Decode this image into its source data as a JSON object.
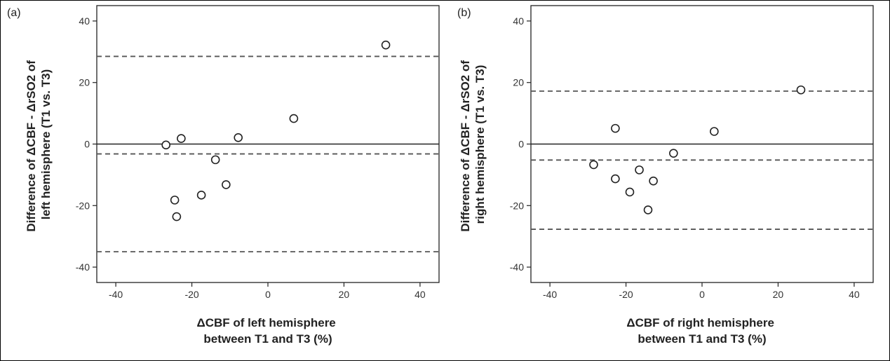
{
  "figure": {
    "border_color": "#000000"
  },
  "chart_data": [
    {
      "panel": "(a)",
      "type": "scatter",
      "title": "",
      "xlabel": [
        "ΔCBF of left hemisphere",
        "between T1 and T3 (%)"
      ],
      "ylabel": [
        "Difference of ΔCBF - ΔrSO2 of",
        "left hemisphere (T1 vs. T3)"
      ],
      "xlim": [
        -45,
        45
      ],
      "ylim": [
        -45,
        45
      ],
      "xticks": [
        -40,
        -20,
        0,
        20,
        40
      ],
      "yticks": [
        -40,
        -20,
        0,
        20,
        40
      ],
      "xtick_labels": [
        "-40",
        "-20",
        "0",
        "20",
        "40"
      ],
      "ytick_labels": [
        "-40",
        "-20",
        "0",
        "20",
        "40"
      ],
      "grid": false,
      "reference_line": 0,
      "dashed_lines": [
        28.5,
        -3.2,
        -35.0
      ],
      "points": [
        {
          "x": -26.8,
          "y": -0.3
        },
        {
          "x": -22.8,
          "y": 1.8
        },
        {
          "x": -24.5,
          "y": -18.2
        },
        {
          "x": -24.0,
          "y": -23.6
        },
        {
          "x": -17.5,
          "y": -16.6
        },
        {
          "x": -13.8,
          "y": -5.1
        },
        {
          "x": -11.0,
          "y": -13.2
        },
        {
          "x": -7.8,
          "y": 2.1
        },
        {
          "x": 6.8,
          "y": 8.3
        },
        {
          "x": 31.0,
          "y": 32.2
        }
      ]
    },
    {
      "panel": "(b)",
      "type": "scatter",
      "title": "",
      "xlabel": [
        "ΔCBF of right hemisphere",
        "between T1 and T3 (%)"
      ],
      "ylabel": [
        "Difference of ΔCBF - ΔrSO2 of",
        "right hemisphere (T1 vs. T3)"
      ],
      "xlim": [
        -45,
        45
      ],
      "ylim": [
        -45,
        45
      ],
      "xticks": [
        -40,
        -20,
        0,
        20,
        40
      ],
      "yticks": [
        -40,
        -20,
        0,
        20,
        40
      ],
      "xtick_labels": [
        "-40",
        "-20",
        "0",
        "20",
        "40"
      ],
      "ytick_labels": [
        "-40",
        "-20",
        "0",
        "20",
        "40"
      ],
      "grid": false,
      "reference_line": 0,
      "dashed_lines": [
        17.2,
        -5.2,
        -27.7
      ],
      "points": [
        {
          "x": -28.5,
          "y": -6.7
        },
        {
          "x": -22.8,
          "y": 5.1
        },
        {
          "x": -22.8,
          "y": -11.3
        },
        {
          "x": -19.0,
          "y": -15.6
        },
        {
          "x": -16.5,
          "y": -8.4
        },
        {
          "x": -14.2,
          "y": -21.4
        },
        {
          "x": -12.8,
          "y": -12.0
        },
        {
          "x": -7.5,
          "y": -3.0
        },
        {
          "x": 3.2,
          "y": 4.1
        },
        {
          "x": 26.0,
          "y": 17.6
        }
      ]
    }
  ]
}
